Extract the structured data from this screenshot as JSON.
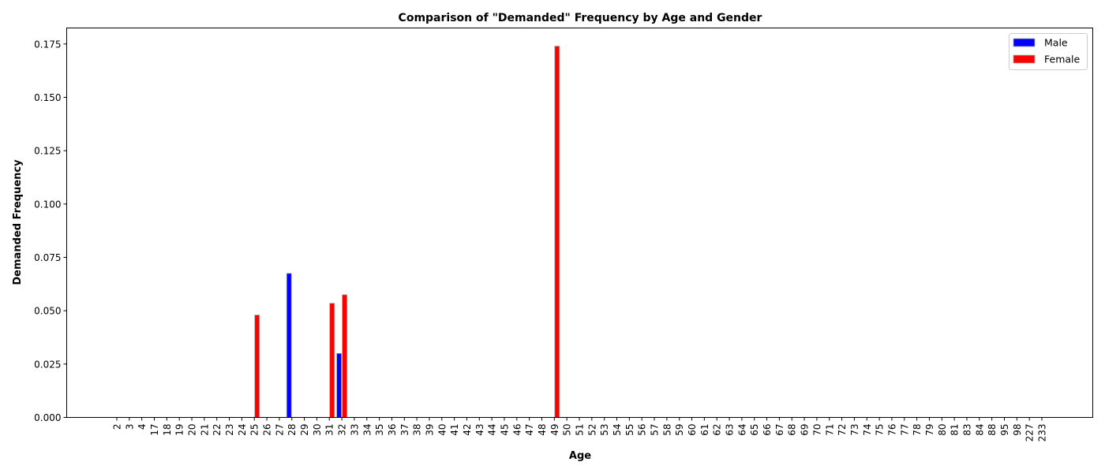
{
  "chart_data": {
    "type": "bar",
    "title": "Comparison of \"Demanded\" Frequency by Age and Gender",
    "xlabel": "Age",
    "ylabel": "Demanded Frequency",
    "ylim": [
      0,
      0.1825
    ],
    "yticks": [
      0.0,
      0.025,
      0.05,
      0.075,
      0.1,
      0.125,
      0.15,
      0.175
    ],
    "ytick_labels": [
      "0.000",
      "0.025",
      "0.050",
      "0.075",
      "0.100",
      "0.125",
      "0.150",
      "0.175"
    ],
    "grid": false,
    "legend_position": "top-right",
    "categories": [
      "2",
      "3",
      "4",
      "17",
      "18",
      "19",
      "20",
      "21",
      "22",
      "23",
      "24",
      "25",
      "26",
      "27",
      "28",
      "29",
      "30",
      "31",
      "32",
      "33",
      "34",
      "35",
      "36",
      "37",
      "38",
      "39",
      "40",
      "41",
      "42",
      "43",
      "44",
      "45",
      "46",
      "47",
      "48",
      "49",
      "50",
      "51",
      "52",
      "53",
      "54",
      "55",
      "56",
      "57",
      "58",
      "59",
      "60",
      "61",
      "62",
      "63",
      "64",
      "65",
      "66",
      "67",
      "68",
      "69",
      "70",
      "71",
      "72",
      "73",
      "74",
      "75",
      "76",
      "77",
      "78",
      "79",
      "80",
      "81",
      "83",
      "84",
      "88",
      "95",
      "98",
      "227",
      "233"
    ],
    "series": [
      {
        "name": "Male",
        "color": "#0000ff",
        "values": [
          0,
          0,
          0,
          0,
          0,
          0,
          0,
          0,
          0,
          0,
          0,
          0,
          0,
          0,
          0.0675,
          0,
          0,
          0,
          0.03,
          0,
          0,
          0,
          0,
          0,
          0,
          0,
          0,
          0,
          0,
          0,
          0,
          0,
          0,
          0,
          0,
          0,
          0,
          0,
          0,
          0,
          0,
          0,
          0,
          0,
          0,
          0,
          0,
          0,
          0,
          0,
          0,
          0,
          0,
          0,
          0,
          0,
          0,
          0,
          0,
          0,
          0,
          0,
          0,
          0,
          0,
          0,
          0,
          0,
          0,
          0,
          0,
          0,
          0,
          0,
          0
        ]
      },
      {
        "name": "Female",
        "color": "#ff0000",
        "values": [
          0,
          0,
          0,
          0,
          0,
          0,
          0,
          0,
          0,
          0,
          0,
          0.048,
          0,
          0,
          0,
          0,
          0,
          0.0535,
          0.0575,
          0,
          0,
          0,
          0,
          0,
          0,
          0,
          0,
          0,
          0,
          0,
          0,
          0,
          0,
          0,
          0,
          0.174,
          0,
          0,
          0,
          0,
          0,
          0,
          0,
          0,
          0,
          0,
          0,
          0,
          0,
          0,
          0,
          0,
          0,
          0,
          0,
          0,
          0,
          0,
          0,
          0,
          0,
          0,
          0,
          0,
          0,
          0,
          0,
          0,
          0,
          0,
          0,
          0,
          0,
          0,
          0
        ]
      }
    ]
  }
}
